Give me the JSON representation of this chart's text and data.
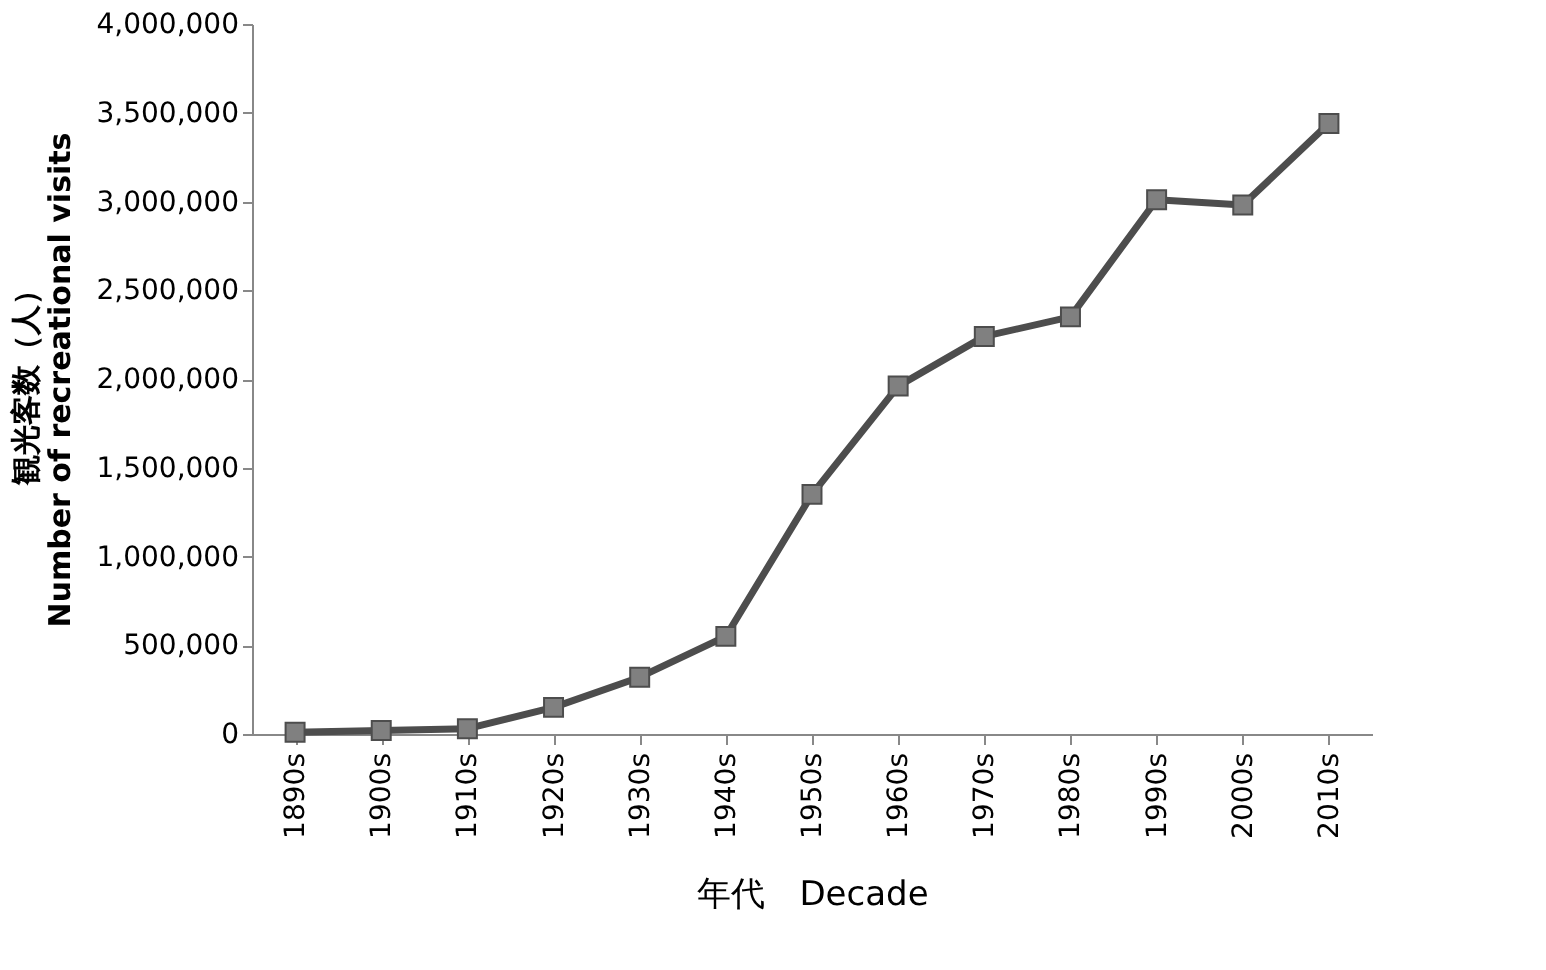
{
  "chart_data": {
    "type": "line",
    "ylabel": "観光客数（人）\nNumber of recreational visits",
    "xlabel": "年代　Decade",
    "categories": [
      "1890s",
      "1900s",
      "1910s",
      "1920s",
      "1930s",
      "1940s",
      "1950s",
      "1960s",
      "1970s",
      "1980s",
      "1990s",
      "2000s",
      "2010s"
    ],
    "series": [
      {
        "color": "#4d4d4d",
        "values": [
          10000,
          20000,
          30000,
          150000,
          320000,
          550000,
          1350000,
          1960000,
          2240000,
          2350000,
          3010000,
          2980000,
          3440000
        ]
      }
    ],
    "ylim": [
      0,
      4000000
    ],
    "yticks": [
      0,
      {
        "value": 500000,
        "label": "500,000"
      },
      {
        "value": 1000000,
        "label": "1,000,000"
      },
      {
        "value": 1500000,
        "label": "1,500,000"
      },
      {
        "value": 2000000,
        "label": "2,000,000"
      },
      {
        "value": 2500000,
        "label": "2,500,000"
      },
      {
        "value": 3000000,
        "label": "3,000,000"
      },
      {
        "value": 3500000,
        "label": "3,500,000"
      },
      {
        "value": 4000000,
        "label": "4,000,000"
      }
    ],
    "marker": "square",
    "line_style": "solid",
    "grid": false
  }
}
